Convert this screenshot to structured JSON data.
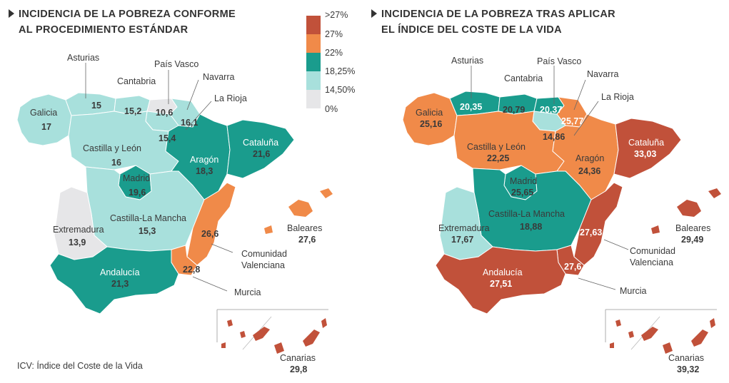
{
  "map_left": {
    "title_line1": "INCIDENCIA DE LA POBREZA CONFORME",
    "title_line2": "AL PROCEDIMIENTO ESTÁNDAR",
    "regions": {
      "galicia": {
        "name": "Galicia",
        "value": "17"
      },
      "asturias": {
        "name": "Asturias",
        "value": "15"
      },
      "cantabria": {
        "name": "Cantabria",
        "value": "15,2"
      },
      "pais_vasco": {
        "name": "País Vasco",
        "value": "10,6"
      },
      "navarra": {
        "name": "Navarra",
        "value": "16,1"
      },
      "la_rioja": {
        "name": "La Rioja",
        "value": "15,4"
      },
      "castilla_leon": {
        "name": "Castilla  y León",
        "value": "16"
      },
      "cataluna": {
        "name": "Cataluña",
        "value": "21,6"
      },
      "aragon": {
        "name": "Aragón",
        "value": "18,3"
      },
      "madrid": {
        "name": "Madrid",
        "value": "19,6"
      },
      "extremadura": {
        "name": "Extremadura",
        "value": "13,9"
      },
      "castilla_mancha": {
        "name": "Castilla-La Mancha",
        "value": "15,3"
      },
      "valencia": {
        "name_line1": "Comunidad",
        "name_line2": "Valenciana",
        "value": "26,6"
      },
      "baleares": {
        "name": "Baleares",
        "value": "27,6"
      },
      "andalucia": {
        "name": "Andalucía",
        "value": "21,3"
      },
      "murcia": {
        "name": "Murcia",
        "value": "22,8"
      },
      "canarias": {
        "name": "Canarias",
        "value": "29,8"
      }
    }
  },
  "map_right": {
    "title_line1": "INCIDENCIA DE LA POBREZA TRAS APLICAR",
    "title_line2": "EL ÍNDICE DEL COSTE DE LA VIDA",
    "regions": {
      "galicia": {
        "name": "Galicia",
        "value": "25,16"
      },
      "asturias": {
        "name": "Asturias",
        "value": "20,35"
      },
      "cantabria": {
        "name": "Cantabria",
        "value": "20,79"
      },
      "pais_vasco": {
        "name": "País Vasco",
        "value": "20,37"
      },
      "navarra": {
        "name": "Navarra",
        "value": "25,77"
      },
      "la_rioja": {
        "name": "La Rioja",
        "value": "14,86"
      },
      "castilla_leon": {
        "name": "Castilla  y León",
        "value": "22,25"
      },
      "cataluna": {
        "name": "Cataluña",
        "value": "33,03"
      },
      "aragon": {
        "name": "Aragón",
        "value": "24,36"
      },
      "madrid": {
        "name": "Madrid",
        "value": "25,65"
      },
      "extremadura": {
        "name": "Extremadura",
        "value": "17,67"
      },
      "castilla_mancha": {
        "name": "Castilla-La Mancha",
        "value": "18,88"
      },
      "valencia": {
        "name_line1": "Comunidad",
        "name_line2": "Valenciana",
        "value": "27,63"
      },
      "baleares": {
        "name": "Baleares",
        "value": "29,49"
      },
      "andalucia": {
        "name": "Andalucía",
        "value": "27,51"
      },
      "murcia": {
        "name": "Murcia",
        "value": "27,6"
      },
      "canarias": {
        "name": "Canarias",
        "value": "39,32"
      }
    }
  },
  "legend": {
    "items": [
      {
        "label": ">27%",
        "color": "#c1513a"
      },
      {
        "label": "27%",
        "color": "#f08a49"
      },
      {
        "label": "22%",
        "color": "#1a9c8d"
      },
      {
        "label": "18,25%",
        "color": "#a8e0dc"
      },
      {
        "label": "14,50%",
        "color": "#e6e6e8"
      },
      {
        "label": "0%",
        "color": ""
      }
    ]
  },
  "colors": {
    "c_top": "#c1513a",
    "c_orange": "#f08a49",
    "c_teal": "#1a9c8d",
    "c_light": "#a8e0dc",
    "c_grey": "#e6e6e8"
  },
  "footnote": "ICV: Índice del Coste de la Vida"
}
